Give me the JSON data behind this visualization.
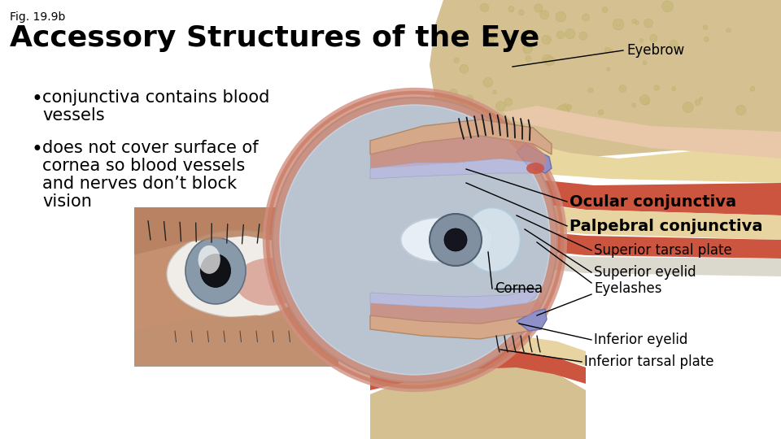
{
  "fig_label": "Fig. 19.9b",
  "title": "Accessory Structures of the Eye",
  "bullet1_line1": "conjunctiva contains blood",
  "bullet1_line2": "vessels",
  "bullet2_line1": "does not cover surface of",
  "bullet2_line2": "cornea so blood vessels",
  "bullet2_line3": "and nerves don’t block",
  "bullet2_line4": "vision",
  "background_color": "#ffffff",
  "title_fontsize": 26,
  "fig_label_fontsize": 10,
  "bullet_fontsize": 15,
  "label_fontsize": 12,
  "bold_label_fontsize": 14,
  "eyebrow_label": "Eyebrow",
  "ocular_label": "Ocular conjunctiva",
  "palpebral_label": "Palpebral conjunctiva",
  "sup_tarsal_label": "Superior tarsal plate",
  "sup_eyelid_label": "Superior eyelid",
  "cornea_label": "Cornea",
  "eyelashes_label": "Eyelashes",
  "inf_eyelid_label": "Inferior eyelid",
  "inf_tarsal_label": "Inferior tarsal plate"
}
